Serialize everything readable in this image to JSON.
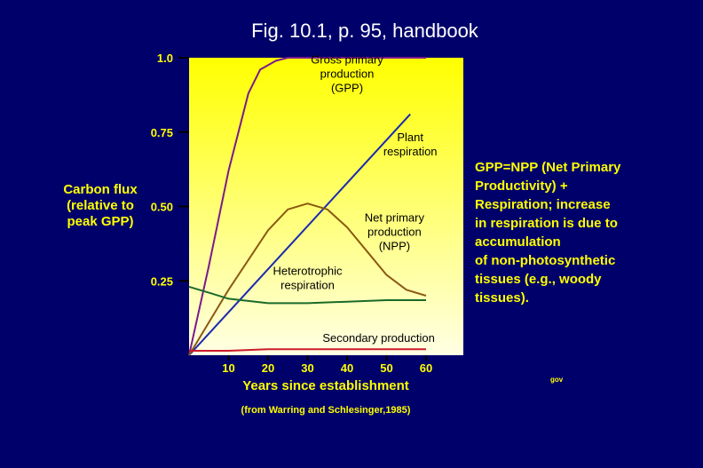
{
  "page": {
    "title": "Fig. 10.1, p. 95, handbook",
    "ylabel_lines": [
      "Carbon flux",
      "(relative to",
      "peak GPP)"
    ],
    "xlabel": "Years since establishment",
    "source": "(from Warring and Schlesinger,1985)",
    "note_lines": [
      "GPP=NPP (Net Primary",
      "Productivity) +",
      "Respiration; increase",
      "in respiration is due to",
      "accumulation",
      "of non-photosynthetic",
      "tissues (e.g., woody",
      "tissues)."
    ],
    "initials": "gov"
  },
  "chart_data": {
    "type": "line",
    "xlim": [
      0,
      70
    ],
    "ylim": [
      0,
      1.0
    ],
    "x_ticks": [
      10,
      20,
      30,
      40,
      50,
      60
    ],
    "x_tick_labels": [
      "10",
      "20",
      "30",
      "40",
      "50",
      "60"
    ],
    "y_ticks": [
      0.25,
      0.5,
      0.75,
      1.0
    ],
    "y_tick_labels": [
      "0.25",
      "0.50",
      "0.75",
      "1.0"
    ],
    "background": "yellow gradient",
    "grid": false,
    "series": [
      {
        "name": "Gross primary production (GPP)",
        "color": "#7a1a8c",
        "x": [
          0,
          5,
          10,
          15,
          18,
          22,
          25,
          30,
          40,
          50,
          60
        ],
        "y": [
          0.0,
          0.3,
          0.62,
          0.88,
          0.96,
          0.99,
          1.0,
          1.0,
          1.0,
          1.0,
          1.0
        ]
      },
      {
        "name": "Plant respiration",
        "color": "#1a2ab0",
        "x": [
          0,
          56
        ],
        "y": [
          0.0,
          0.81
        ]
      },
      {
        "name": "Net primary production (NPP)",
        "color": "#8a5a10",
        "x": [
          0,
          10,
          20,
          25,
          30,
          35,
          40,
          45,
          50,
          55,
          60
        ],
        "y": [
          0.0,
          0.22,
          0.42,
          0.49,
          0.51,
          0.49,
          0.43,
          0.35,
          0.27,
          0.22,
          0.2
        ]
      },
      {
        "name": "Heterotrophic respiration",
        "color": "#1a6a2a",
        "x": [
          0,
          5,
          10,
          20,
          30,
          40,
          50,
          60
        ],
        "y": [
          0.23,
          0.21,
          0.19,
          0.175,
          0.175,
          0.18,
          0.185,
          0.185
        ]
      },
      {
        "name": "Secondary production",
        "color": "#cc1a2a",
        "x": [
          0,
          10,
          20,
          30,
          40,
          50,
          60
        ],
        "y": [
          0.015,
          0.015,
          0.02,
          0.02,
          0.02,
          0.02,
          0.02
        ]
      }
    ],
    "labels": [
      {
        "lines": [
          "Gross primary",
          "production",
          "(GPP)"
        ],
        "x": 40,
        "y": 0.98
      },
      {
        "lines": [
          "Plant",
          "respiration"
        ],
        "x": 56,
        "y": 0.72
      },
      {
        "lines": [
          "Net primary",
          "production",
          "(NPP)"
        ],
        "x": 52,
        "y": 0.45
      },
      {
        "lines": [
          "Heterotrophic",
          "respiration"
        ],
        "x": 30,
        "y": 0.27
      },
      {
        "lines": [
          "Secondary production"
        ],
        "x": 48,
        "y": 0.045
      }
    ]
  }
}
